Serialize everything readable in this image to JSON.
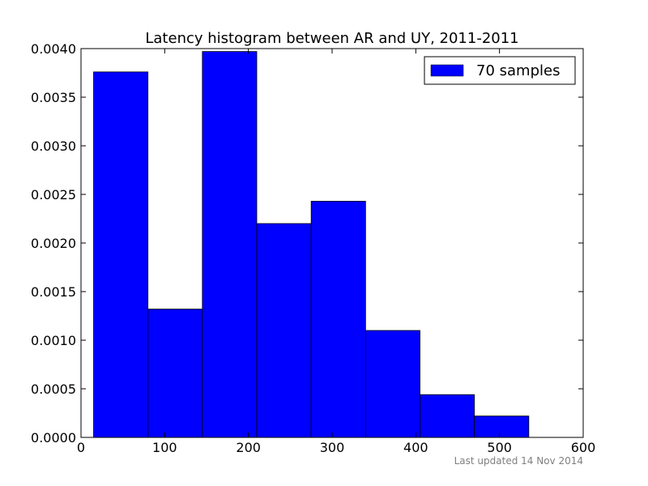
{
  "chart_data": {
    "type": "bar",
    "title": "Latency histogram between AR and UY, 2011-2011",
    "xlabel": "",
    "ylabel": "",
    "xlim": [
      0,
      600
    ],
    "ylim": [
      0,
      0.004
    ],
    "x_ticks": [
      "0",
      "100",
      "200",
      "300",
      "400",
      "500",
      "600"
    ],
    "y_ticks": [
      "0.0000",
      "0.0005",
      "0.0010",
      "0.0015",
      "0.0020",
      "0.0025",
      "0.0030",
      "0.0035",
      "0.0040"
    ],
    "bins": [
      {
        "start": 15,
        "end": 80,
        "value": 0.00376
      },
      {
        "start": 80,
        "end": 145,
        "value": 0.00132
      },
      {
        "start": 145,
        "end": 210,
        "value": 0.00397
      },
      {
        "start": 210,
        "end": 275,
        "value": 0.0022
      },
      {
        "start": 275,
        "end": 340,
        "value": 0.00243
      },
      {
        "start": 340,
        "end": 405,
        "value": 0.0011
      },
      {
        "start": 405,
        "end": 470,
        "value": 0.00044
      },
      {
        "start": 470,
        "end": 535,
        "value": 0.00022
      }
    ],
    "series": [
      {
        "name": "70 samples",
        "color": "#0000ff"
      }
    ],
    "legend_position": "top-right",
    "grid": false
  },
  "footer": {
    "note": "Last updated 14 Nov 2014"
  }
}
